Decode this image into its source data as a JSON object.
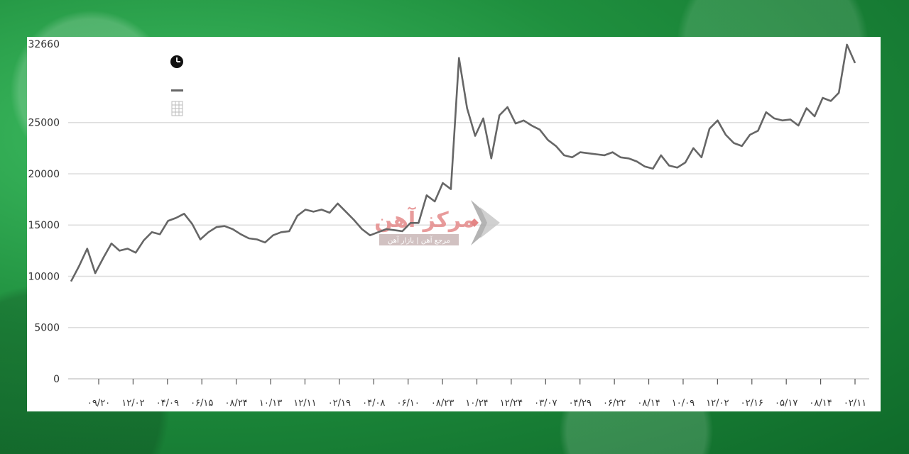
{
  "chart_data": {
    "type": "line",
    "title": "",
    "xlabel": "",
    "ylabel": "",
    "ymax_label": "32660",
    "ylim": [
      0,
      32660
    ],
    "yticks": [
      0,
      5000,
      10000,
      15000,
      20000,
      25000
    ],
    "x_tick_labels": [
      "۰۹/۲۰",
      "۱۲/۰۲",
      "۰۴/۰۹",
      "۰۶/۱۵",
      "۰۸/۲۴",
      "۱۰/۱۳",
      "۱۲/۱۱",
      "۰۲/۱۹",
      "۰۴/۰۸",
      "۰۶/۱۰",
      "۰۸/۲۳",
      "۱۰/۲۴",
      "۱۲/۲۴",
      "۰۳/۰۷",
      "۰۴/۲۹",
      "۰۶/۲۲",
      "۰۸/۱۴",
      "۱۰/۰۹",
      "۱۲/۰۲",
      "۰۲/۱۶",
      "۰۵/۱۷",
      "۰۸/۱۴",
      "۰۲/۱۱"
    ],
    "series": [
      {
        "color": "#666666",
        "values": [
          9500,
          11000,
          12700,
          10300,
          11800,
          13200,
          12500,
          12700,
          12300,
          13500,
          14300,
          14100,
          15400,
          15700,
          16100,
          15100,
          13600,
          14300,
          14800,
          14900,
          14600,
          14100,
          13700,
          13600,
          13300,
          14000,
          14300,
          14400,
          15900,
          16500,
          16300,
          16500,
          16200,
          17100,
          16300,
          15500,
          14600,
          14000,
          14300,
          14600,
          14500,
          14400,
          15200,
          15200,
          17900,
          17300,
          19100,
          18500,
          31300,
          26400,
          23700,
          25400,
          21500,
          25700,
          26500,
          24900,
          25200,
          24700,
          24300,
          23300,
          22700,
          21800,
          21600,
          22100,
          22000,
          21900,
          21800,
          22100,
          21600,
          21500,
          21200,
          20700,
          20500,
          21800,
          20800,
          20600,
          21100,
          22500,
          21600,
          24400,
          25200,
          23800,
          23000,
          22700,
          23800,
          24200,
          26000,
          25400,
          25200,
          25300,
          24700,
          26400,
          25600,
          27400,
          27100,
          27900,
          32600,
          30800
        ]
      }
    ],
    "grid": true,
    "legend": "top-left"
  },
  "legend": {
    "clock_icon": "clock-icon",
    "legend_swatch_color": "#666666",
    "grid_icon": "grid-icon"
  },
  "watermark": {
    "title": "مرکز آهن",
    "subtitle": "مرجع آهن | بازار آهن"
  }
}
